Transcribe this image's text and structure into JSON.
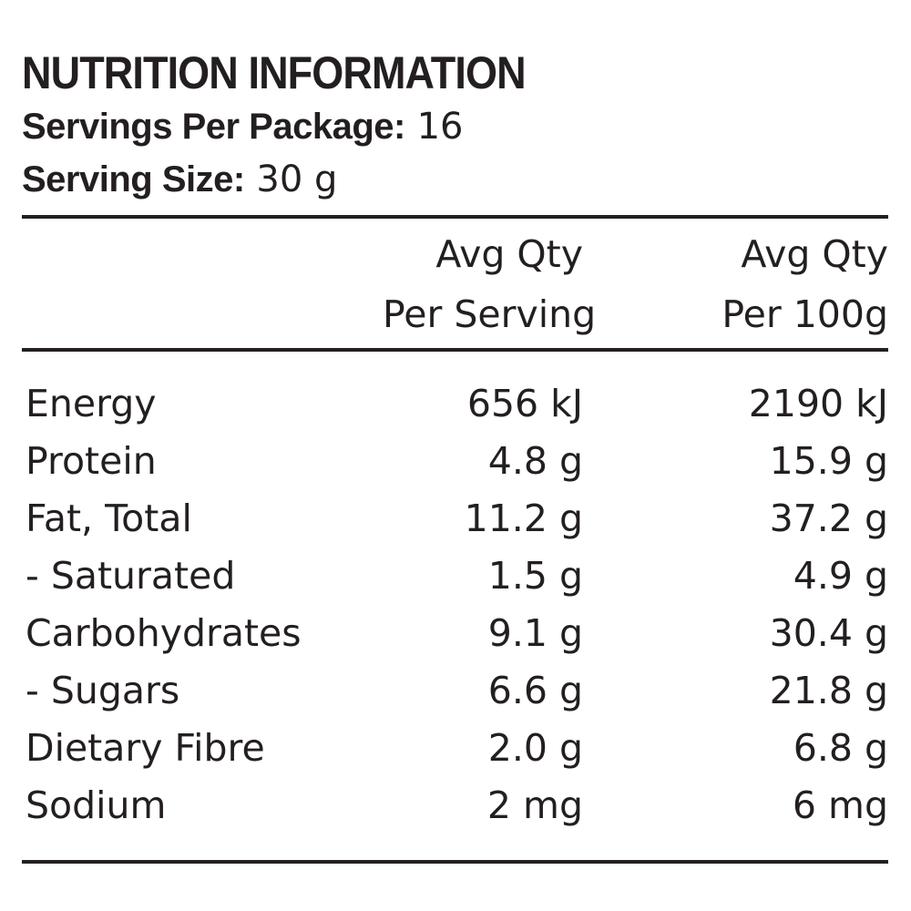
{
  "panel": {
    "title": "NUTRITION INFORMATION",
    "servings_label": "Servings Per Package:",
    "servings_value": "16",
    "size_label": "Serving Size:",
    "size_value": "30 g"
  },
  "header": {
    "col_a_line1": "Avg Qty",
    "col_a_line2": "Per Serving",
    "col_b_line1": "Avg Qty",
    "col_b_line2": "Per 100g"
  },
  "rows": [
    {
      "name": "Energy",
      "per_serving": "656 kJ",
      "per_100g": "2190 kJ"
    },
    {
      "name": "Protein",
      "per_serving": "4.8 g",
      "per_100g": "15.9 g"
    },
    {
      "name": "Fat, Total",
      "per_serving": "11.2 g",
      "per_100g": "37.2 g"
    },
    {
      "name": "- Saturated",
      "per_serving": "1.5 g",
      "per_100g": "4.9 g"
    },
    {
      "name": "Carbohydrates",
      "per_serving": "9.1 g",
      "per_100g": "30.4 g"
    },
    {
      "name": "- Sugars",
      "per_serving": "6.6 g",
      "per_100g": "21.8 g"
    },
    {
      "name": "Dietary Fibre",
      "per_serving": "2.0 g",
      "per_100g": "6.8 g"
    },
    {
      "name": "Sodium",
      "per_serving": "2 mg",
      "per_100g": "6 mg"
    }
  ],
  "colors": {
    "ink": "#231f20",
    "background": "#ffffff"
  }
}
